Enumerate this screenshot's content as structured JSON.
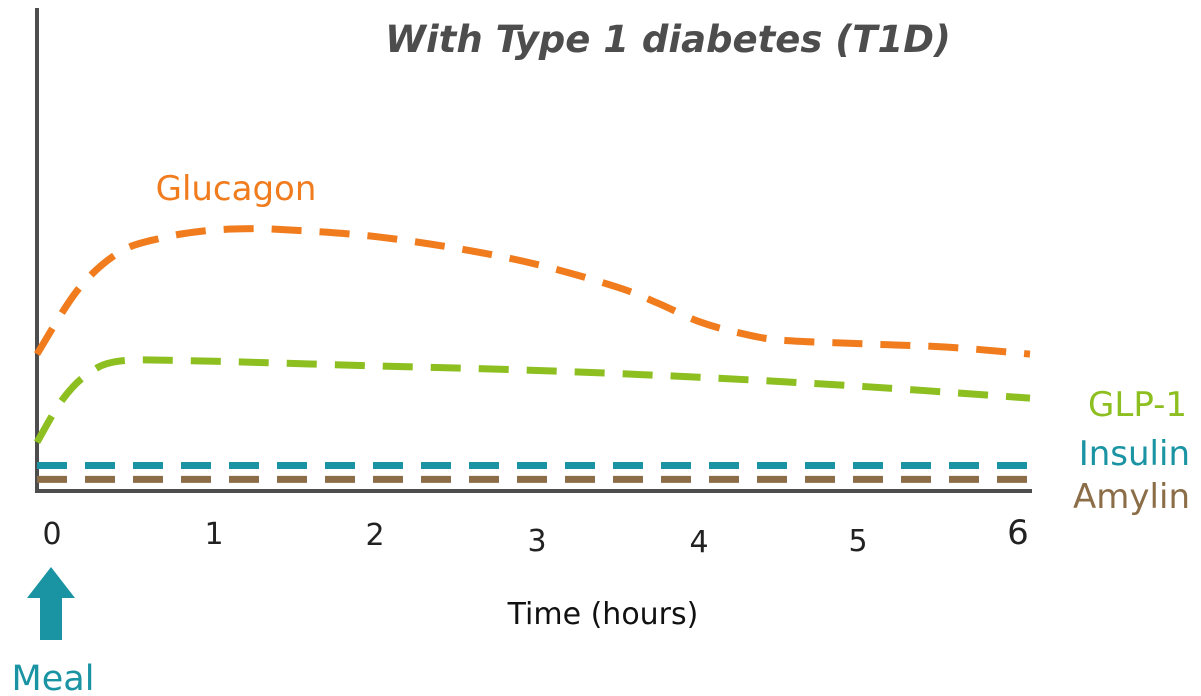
{
  "chart_data": {
    "type": "line",
    "title": "With Type 1 diabetes (T1D)",
    "xlabel": "Time (hours)",
    "ylabel": "",
    "x_ticks": [
      "0",
      "1",
      "2",
      "3",
      "4",
      "5",
      "6"
    ],
    "xlim": [
      0,
      6
    ],
    "ylim": [
      0,
      1
    ],
    "grid": false,
    "legend": "labels placed beside each curve",
    "series": [
      {
        "name": "Glucagon",
        "color": "#F07C1E",
        "x": [
          0,
          0.25,
          0.5,
          0.75,
          1,
          1.25,
          1.5,
          2,
          2.5,
          3,
          3.5,
          3.75,
          4,
          4.25,
          4.5,
          5,
          5.5,
          6
        ],
        "y": [
          0.28,
          0.42,
          0.5,
          0.53,
          0.545,
          0.55,
          0.548,
          0.535,
          0.51,
          0.475,
          0.425,
          0.39,
          0.35,
          0.325,
          0.31,
          0.302,
          0.295,
          0.28
        ]
      },
      {
        "name": "GLP-1",
        "color": "#8CBF1F",
        "x": [
          0,
          0.15,
          0.3,
          0.5,
          1,
          2,
          3,
          4,
          5,
          6
        ],
        "y": [
          0.09,
          0.18,
          0.235,
          0.265,
          0.265,
          0.255,
          0.245,
          0.23,
          0.21,
          0.185
        ]
      },
      {
        "name": "Insulin",
        "color": "#1A93A3",
        "x": [
          0,
          6
        ],
        "y": [
          0.04,
          0.04
        ]
      },
      {
        "name": "Amylin",
        "color": "#8B6D47",
        "x": [
          0,
          6
        ],
        "y": [
          0.01,
          0.01
        ]
      }
    ],
    "annotations": [
      {
        "text": "Meal",
        "x": 0,
        "color": "#1A93A3"
      }
    ]
  }
}
